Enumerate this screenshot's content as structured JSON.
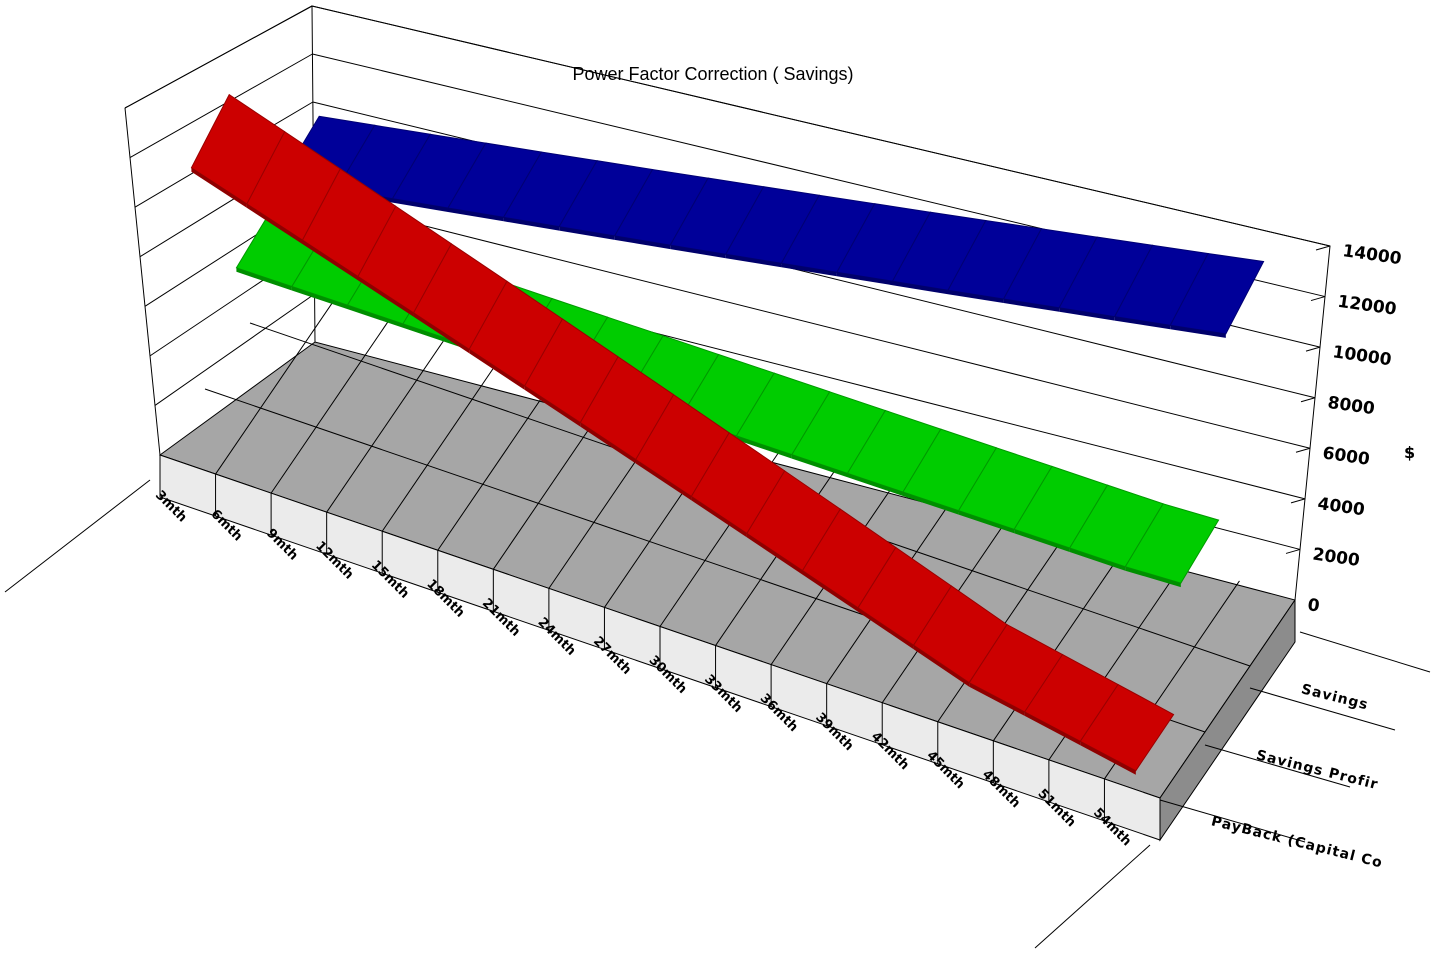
{
  "chart_data": {
    "type": "line",
    "style": "3d-ribbon",
    "title": "Power Factor Correction ( Savings)",
    "ylabel": "$",
    "ylim": [
      0,
      14000
    ],
    "yticks": [
      0,
      2000,
      4000,
      6000,
      8000,
      10000,
      12000,
      14000
    ],
    "categories": [
      "3mth",
      "6mth",
      "9mth",
      "12mth",
      "15mth",
      "18mth",
      "21mth",
      "24mth",
      "27mth",
      "30mth",
      "33mth",
      "36mth",
      "39mth",
      "42mth",
      "45mth",
      "48mth",
      "51mth",
      "54mth"
    ],
    "series": [
      {
        "name": "Savings",
        "color": "#000099",
        "values": [
          6500,
          6900,
          7300,
          7700,
          8100,
          8500,
          8900,
          9300,
          9700,
          10100,
          10500,
          10900,
          11300,
          11700,
          12100,
          12500,
          12900,
          13300
        ]
      },
      {
        "name": "Savings Profit",
        "label": "Savings Profir",
        "color": "#00cc00",
        "values": [
          5900,
          5900,
          5900,
          5900,
          5900,
          5900,
          5900,
          5900,
          5900,
          5900,
          5900,
          5900,
          5900,
          5900,
          5900,
          5900,
          5900,
          6000
        ]
      },
      {
        "name": "PayBack (Capital Cost)",
        "label": "PayBack (Capital Co",
        "color": "#cc0000",
        "values": [
          14700,
          13800,
          12900,
          12000,
          11100,
          10200,
          9300,
          8400,
          7500,
          6600,
          5700,
          4800,
          3900,
          3000,
          2100,
          1600,
          1100,
          600
        ]
      }
    ]
  }
}
